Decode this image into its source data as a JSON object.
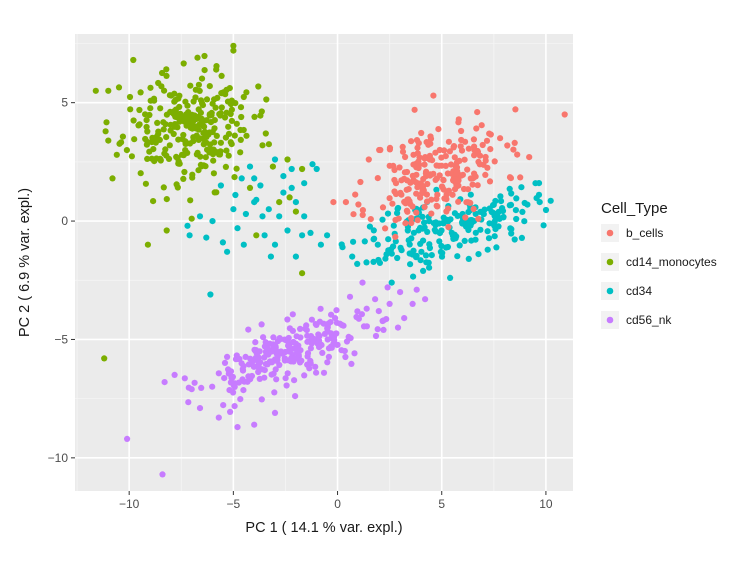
{
  "chart_data": {
    "type": "scatter",
    "xlabel": "PC 1 ( 14.1 % var. expl.)",
    "ylabel": "PC 2 ( 6.9 % var. expl.)",
    "xlim": [
      -12.6,
      11.3
    ],
    "ylim": [
      -11.4,
      7.9
    ],
    "x_ticks": [
      -10,
      -5,
      0,
      5,
      10
    ],
    "y_ticks": [
      -10,
      -5,
      0,
      5
    ],
    "x_tick_labels": [
      "−10",
      "−5",
      "0",
      "5",
      "10"
    ],
    "y_tick_labels": [
      "−10",
      "−5",
      "0",
      "5"
    ],
    "grid": true,
    "background": "#ebebeb",
    "legend": {
      "title": "Cell_Type",
      "placement": "right",
      "entries": [
        "b_cells",
        "cd14_monocytes",
        "cd34",
        "cd56_nk"
      ]
    },
    "series": [
      {
        "name": "b_cells",
        "color": "#f8766d",
        "cluster": {
          "cx": 4.8,
          "cy": 2.0,
          "sx": 1.6,
          "sy": 1.1,
          "rho": 0.35,
          "n": 230,
          "seed": 11
        },
        "points": [
          [
            10.9,
            4.5
          ],
          [
            4.6,
            5.3
          ],
          [
            0.4,
            0.8
          ],
          [
            -0.2,
            0.8
          ],
          [
            8.5,
            3.3
          ],
          [
            7.8,
            3.5
          ],
          [
            2.0,
            3.0
          ],
          [
            1.5,
            2.6
          ],
          [
            3.7,
            4.7
          ],
          [
            6.7,
            4.6
          ],
          [
            1.0,
            0.7
          ],
          [
            9.2,
            2.7
          ]
        ]
      },
      {
        "name": "cd14_monocytes",
        "color": "#7cae00",
        "cluster": {
          "cx": -7.2,
          "cy": 3.9,
          "sx": 1.55,
          "sy": 1.2,
          "rho": 0.0,
          "n": 280,
          "seed": 23
        },
        "points": [
          [
            -11.2,
            -5.8
          ],
          [
            -11.6,
            5.5
          ],
          [
            -11.0,
            5.5
          ],
          [
            -9.1,
            -1.0
          ],
          [
            -5.0,
            7.4
          ],
          [
            -5.0,
            7.2
          ],
          [
            -1.7,
            -2.2
          ],
          [
            -1.7,
            2.2
          ],
          [
            -2.3,
            1.0
          ],
          [
            -2.8,
            0.8
          ],
          [
            -3.1,
            2.3
          ],
          [
            -2.4,
            2.6
          ],
          [
            -3.6,
            3.2
          ],
          [
            -11.0,
            3.4
          ],
          [
            -10.8,
            1.8
          ],
          [
            -9.8,
            6.8
          ],
          [
            -8.2,
            -0.4
          ],
          [
            -7.0,
            0.1
          ],
          [
            -4.2,
            1.4
          ],
          [
            -3.9,
            -0.6
          ],
          [
            -2.0,
            0.4
          ]
        ]
      },
      {
        "name": "cd34",
        "color": "#00bfc4",
        "cluster": {
          "cx": 5.2,
          "cy": -0.3,
          "sx": 2.1,
          "sy": 0.85,
          "rho": 0.55,
          "n": 200,
          "seed": 37
        },
        "points": [
          [
            -6.1,
            -3.1
          ],
          [
            -7.1,
            -0.6
          ],
          [
            -7.2,
            -0.2
          ],
          [
            -6.3,
            -0.7
          ],
          [
            -5.5,
            -0.9
          ],
          [
            -4.8,
            -0.3
          ],
          [
            -4.4,
            0.3
          ],
          [
            -4.0,
            0.8
          ],
          [
            -3.6,
            0.2
          ],
          [
            -3.3,
            0.5
          ],
          [
            -2.6,
            1.2
          ],
          [
            -2.0,
            0.8
          ],
          [
            -1.6,
            1.6
          ],
          [
            -1.2,
            2.4
          ],
          [
            -3.0,
            -1.0
          ],
          [
            -2.4,
            -0.4
          ],
          [
            -1.7,
            -0.6
          ],
          [
            -1.3,
            -0.5
          ],
          [
            -0.8,
            -1.0
          ],
          [
            -3.2,
            -1.5
          ],
          [
            -2.6,
            1.9
          ],
          [
            -1.0,
            2.2
          ],
          [
            -4.2,
            2.3
          ],
          [
            -3.0,
            2.6
          ],
          [
            -2.2,
            2.2
          ],
          [
            -4.0,
            1.8
          ],
          [
            -5.0,
            0.5
          ],
          [
            -6.0,
            0.0
          ],
          [
            -5.6,
            1.5
          ],
          [
            -4.6,
            1.8
          ],
          [
            -3.7,
            1.5
          ],
          [
            -0.5,
            -0.6
          ],
          [
            -4.5,
            -1.0
          ],
          [
            -2.0,
            -1.5
          ],
          [
            -3.5,
            -0.6
          ],
          [
            -2.8,
            0.2
          ],
          [
            -6.6,
            0.2
          ],
          [
            -5.3,
            -1.3
          ],
          [
            -4.9,
            1.1
          ],
          [
            -3.9,
            0.9
          ],
          [
            -1.6,
            0.2
          ],
          [
            -2.2,
            1.4
          ],
          [
            5.4,
            -2.4
          ],
          [
            9.5,
            1.6
          ],
          [
            9.7,
            0.8
          ],
          [
            2.6,
            -2.6
          ],
          [
            6.3,
            -1.6
          ]
        ]
      },
      {
        "name": "cd56_nk",
        "color": "#c77cff",
        "cluster": {
          "cx": -2.3,
          "cy": -5.6,
          "sx": 2.2,
          "sy": 0.95,
          "rho": 0.72,
          "n": 250,
          "seed": 53
        },
        "points": [
          [
            -10.1,
            -9.2
          ],
          [
            -8.4,
            -10.7
          ],
          [
            -8.3,
            -6.8
          ],
          [
            1.2,
            -2.6
          ],
          [
            2.4,
            -2.8
          ],
          [
            2.5,
            -3.5
          ],
          [
            1.8,
            -3.3
          ],
          [
            3.0,
            -3.0
          ],
          [
            2.9,
            -4.5
          ],
          [
            2.2,
            -4.2
          ],
          [
            3.8,
            -2.9
          ],
          [
            3.2,
            -4.1
          ],
          [
            1.4,
            -3.7
          ],
          [
            0.6,
            -3.2
          ],
          [
            -5.7,
            -8.3
          ],
          [
            -4.8,
            -8.7
          ],
          [
            -6.6,
            -7.9
          ],
          [
            -7.0,
            -7.1
          ],
          [
            -4.0,
            -8.6
          ],
          [
            -3.0,
            -8.1
          ],
          [
            3.6,
            -3.5
          ],
          [
            4.2,
            -3.3
          ]
        ]
      }
    ]
  }
}
